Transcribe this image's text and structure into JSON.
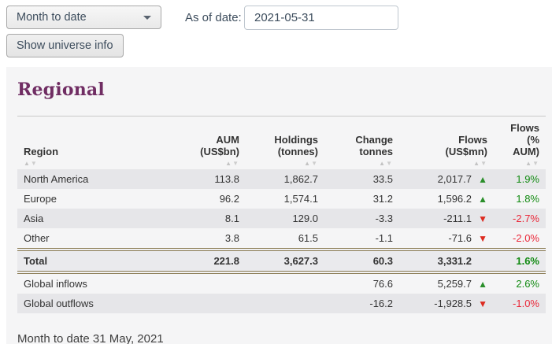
{
  "controls": {
    "period_select": {
      "value": "Month to date"
    },
    "as_of_label": "As of date:",
    "as_of_value": "2021-05-31",
    "show_universe_button": "Show universe info"
  },
  "section": {
    "title": "Regional",
    "footer": "Month to date 31 May, 2021"
  },
  "icons": {
    "sort_asc": "▲",
    "sort_desc": "▼",
    "flow_up": "▲",
    "flow_down": "▼",
    "select_caret": "caret-down"
  },
  "colors": {
    "heading_purple": "#702d63",
    "positive_green": "#118a11",
    "negative_red": "#ea2839",
    "flow_up_green": "#2b8f2b",
    "flow_down_red": "#dd2b20",
    "total_rule_gold": "#8c7d55",
    "stripe_dark": "#e6e6e9",
    "panel_gray": "#f5f5f6"
  },
  "table": {
    "columns": [
      {
        "label": "Region",
        "sublabel": "",
        "align": "left"
      },
      {
        "label": "AUM",
        "sublabel": "(US$bn)",
        "align": "num"
      },
      {
        "label": "Holdings",
        "sublabel": "(tonnes)",
        "align": "num"
      },
      {
        "label": "Change",
        "sublabel": "tonnes",
        "align": "num"
      },
      {
        "label": "Flows",
        "sublabel": "(US$mn)",
        "align": "num"
      },
      {
        "label": "Flows",
        "sublabel": "(% AUM)",
        "align": "num"
      }
    ],
    "rows": [
      {
        "kind": "data",
        "stripe": "dark",
        "region": "North America",
        "aum": "113.8",
        "holdings": "1,862.7",
        "change": "33.5",
        "flows": "2,017.7",
        "dir": "up",
        "pct": "1.9%",
        "pct_tone": "pos"
      },
      {
        "kind": "data",
        "stripe": "light",
        "region": "Europe",
        "aum": "96.2",
        "holdings": "1,574.1",
        "change": "31.2",
        "flows": "1,596.2",
        "dir": "up",
        "pct": "1.8%",
        "pct_tone": "pos"
      },
      {
        "kind": "data",
        "stripe": "dark",
        "region": "Asia",
        "aum": "8.1",
        "holdings": "129.0",
        "change": "-3.3",
        "flows": "-211.1",
        "dir": "down",
        "pct": "-2.7%",
        "pct_tone": "neg"
      },
      {
        "kind": "data",
        "stripe": "light",
        "region": "Other",
        "aum": "3.8",
        "holdings": "61.5",
        "change": "-1.1",
        "flows": "-71.6",
        "dir": "down",
        "pct": "-2.0%",
        "pct_tone": "neg"
      },
      {
        "kind": "total",
        "stripe": "total",
        "region": "Total",
        "aum": "221.8",
        "holdings": "3,627.3",
        "change": "60.3",
        "flows": "3,331.2",
        "dir": "none",
        "pct": "1.6%",
        "pct_tone": "pos"
      },
      {
        "kind": "data",
        "stripe": "light",
        "region": "Global inflows",
        "aum": "",
        "holdings": "",
        "change": "76.6",
        "flows": "5,259.7",
        "dir": "up",
        "pct": "2.6%",
        "pct_tone": "pos"
      },
      {
        "kind": "data",
        "stripe": "dark",
        "region": "Global outflows",
        "aum": "",
        "holdings": "",
        "change": "-16.2",
        "flows": "-1,928.5",
        "dir": "down",
        "pct": "-1.0%",
        "pct_tone": "neg"
      }
    ]
  }
}
